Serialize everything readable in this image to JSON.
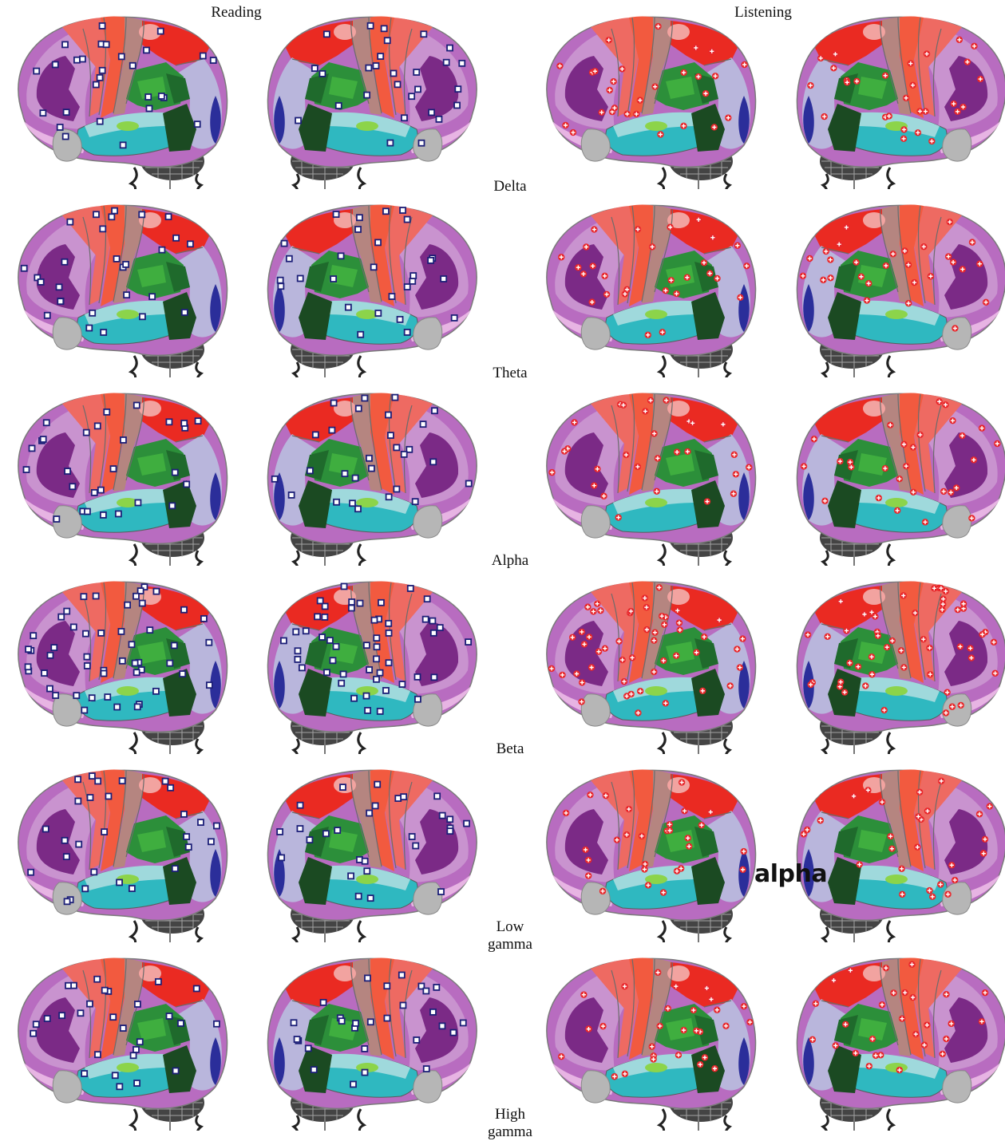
{
  "columns": {
    "left": "Reading",
    "right": "Listening"
  },
  "bands": [
    {
      "label_line1": "Delta",
      "label_line2": ""
    },
    {
      "label_line1": "Theta",
      "label_line2": ""
    },
    {
      "label_line1": "Alpha",
      "label_line2": ""
    },
    {
      "label_line1": "Beta",
      "label_line2": ""
    },
    {
      "label_line1": "Low",
      "label_line2": "gamma"
    },
    {
      "label_line1": "High",
      "label_line2": "gamma"
    }
  ],
  "overlay_word": "alpha",
  "marker_styles": {
    "reading": {
      "shape": "square",
      "color": "#1c1f78"
    },
    "listening": {
      "shape": "plus",
      "color": "#e8262a"
    }
  },
  "region_colors": {
    "frontal_outer": "#b86cc0",
    "frontal_mid": "#c993cf",
    "frontal_inner": "#7b2a86",
    "premotor": "#ee6a62",
    "precentral": "#f25a3f",
    "central_strip": "#b58580",
    "postcentral": "#ea2a22",
    "superior_parietal": "#e5271f",
    "supramarginal": "#2c8f3a",
    "angular": "#3fae3f",
    "temporal_upper": "#9fd9dc",
    "temporal_lower": "#2fb8c0",
    "occipital": "#b9b6dc",
    "occipital_pole": "#2b2e9a",
    "brainstem": "#1b4a22",
    "temporal_pole": "#b6b6b6",
    "orbital": "#e7b4e3",
    "cerebellum": "#444444"
  }
}
